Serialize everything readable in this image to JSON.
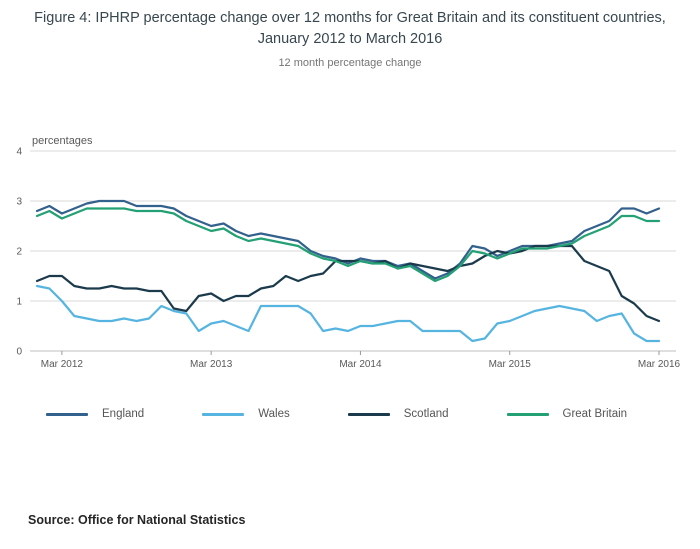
{
  "figure": {
    "title": "Figure 4: IPHRP percentage change over 12 months for Great Britain and its constituent countries, January 2012 to March 2016",
    "subtitle": "12 month percentage change",
    "unit_label": "percentages",
    "source": "Source: Office for National Statistics"
  },
  "chart_data": {
    "type": "line",
    "title": "Figure 4: IPHRP percentage change over 12 months for Great Britain and its constituent countries, January 2012 to March 2016",
    "subtitle": "12 month percentage change",
    "ylabel": "percentages",
    "xlabel": "",
    "ylim": [
      0,
      4
    ],
    "y_ticks": [
      0,
      1,
      2,
      3,
      4
    ],
    "grid": "horizontal",
    "legend_position": "bottom",
    "x": [
      "Jan 2012",
      "Feb 2012",
      "Mar 2012",
      "Apr 2012",
      "May 2012",
      "Jun 2012",
      "Jul 2012",
      "Aug 2012",
      "Sep 2012",
      "Oct 2012",
      "Nov 2012",
      "Dec 2012",
      "Jan 2013",
      "Feb 2013",
      "Mar 2013",
      "Apr 2013",
      "May 2013",
      "Jun 2013",
      "Jul 2013",
      "Aug 2013",
      "Sep 2013",
      "Oct 2013",
      "Nov 2013",
      "Dec 2013",
      "Jan 2014",
      "Feb 2014",
      "Mar 2014",
      "Apr 2014",
      "May 2014",
      "Jun 2014",
      "Jul 2014",
      "Aug 2014",
      "Sep 2014",
      "Oct 2014",
      "Nov 2014",
      "Dec 2014",
      "Jan 2015",
      "Feb 2015",
      "Mar 2015",
      "Apr 2015",
      "May 2015",
      "Jun 2015",
      "Jul 2015",
      "Aug 2015",
      "Sep 2015",
      "Oct 2015",
      "Nov 2015",
      "Dec 2015",
      "Jan 2016",
      "Feb 2016",
      "Mar 2016"
    ],
    "x_tick_labels": [
      "Mar 2012",
      "Mar 2013",
      "Mar 2014",
      "Mar 2015",
      "Mar 2016"
    ],
    "x_tick_indices": [
      2,
      14,
      26,
      38,
      50
    ],
    "series": [
      {
        "name": "England",
        "color": "#33618D",
        "values": [
          2.8,
          2.9,
          2.75,
          2.85,
          2.95,
          3.0,
          3.0,
          3.0,
          2.9,
          2.9,
          2.9,
          2.85,
          2.7,
          2.6,
          2.5,
          2.55,
          2.4,
          2.3,
          2.35,
          2.3,
          2.25,
          2.2,
          2.0,
          1.9,
          1.85,
          1.75,
          1.85,
          1.8,
          1.8,
          1.7,
          1.75,
          1.6,
          1.45,
          1.55,
          1.75,
          2.1,
          2.05,
          1.9,
          2.0,
          2.1,
          2.1,
          2.1,
          2.15,
          2.2,
          2.4,
          2.5,
          2.6,
          2.85,
          2.85,
          2.75,
          2.85
        ]
      },
      {
        "name": "Wales",
        "color": "#56B4E1",
        "values": [
          1.3,
          1.25,
          1.0,
          0.7,
          0.65,
          0.6,
          0.6,
          0.65,
          0.6,
          0.65,
          0.9,
          0.8,
          0.75,
          0.4,
          0.55,
          0.6,
          0.5,
          0.4,
          0.9,
          0.9,
          0.9,
          0.9,
          0.75,
          0.4,
          0.45,
          0.4,
          0.5,
          0.5,
          0.55,
          0.6,
          0.6,
          0.4,
          0.4,
          0.4,
          0.4,
          0.2,
          0.25,
          0.55,
          0.6,
          0.7,
          0.8,
          0.85,
          0.9,
          0.85,
          0.8,
          0.6,
          0.7,
          0.75,
          0.35,
          0.2,
          0.2
        ]
      },
      {
        "name": "Scotland",
        "color": "#1B3B4D",
        "values": [
          1.4,
          1.5,
          1.5,
          1.3,
          1.25,
          1.25,
          1.3,
          1.25,
          1.25,
          1.2,
          1.2,
          0.85,
          0.8,
          1.1,
          1.15,
          1.0,
          1.1,
          1.1,
          1.25,
          1.3,
          1.5,
          1.4,
          1.5,
          1.55,
          1.8,
          1.8,
          1.8,
          1.75,
          1.8,
          1.65,
          1.75,
          1.7,
          1.65,
          1.6,
          1.7,
          1.75,
          1.9,
          2.0,
          1.95,
          2.0,
          2.1,
          2.1,
          2.1,
          2.1,
          1.8,
          1.7,
          1.6,
          1.1,
          0.95,
          0.7,
          0.6
        ]
      },
      {
        "name": "Great Britain",
        "color": "#23A074",
        "values": [
          2.7,
          2.8,
          2.65,
          2.75,
          2.85,
          2.85,
          2.85,
          2.85,
          2.8,
          2.8,
          2.8,
          2.75,
          2.6,
          2.5,
          2.4,
          2.45,
          2.3,
          2.2,
          2.25,
          2.2,
          2.15,
          2.1,
          1.95,
          1.85,
          1.8,
          1.7,
          1.8,
          1.75,
          1.75,
          1.65,
          1.7,
          1.55,
          1.4,
          1.5,
          1.7,
          2.0,
          1.95,
          1.85,
          1.95,
          2.05,
          2.05,
          2.05,
          2.1,
          2.15,
          2.3,
          2.4,
          2.5,
          2.7,
          2.7,
          2.6,
          2.6
        ]
      }
    ]
  }
}
